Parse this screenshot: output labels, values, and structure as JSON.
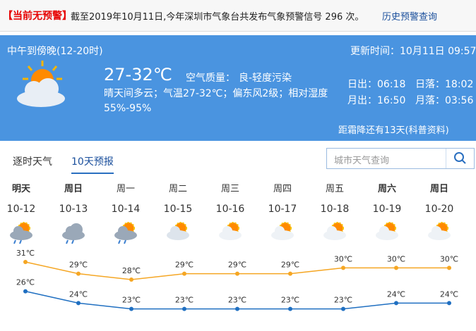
{
  "alert": {
    "status": "【当前无预警】",
    "message": "截至2019年10月11日,今年深圳市气象台共发布气象预警信号 296 次。",
    "link": "历史预警查询"
  },
  "current": {
    "period": "中午到傍晚(12-20时)",
    "updated": "更新时间：10月11日 09:57",
    "temp": "27-32℃",
    "aqi_label": "空气质量：",
    "aqi_value": "良-轻度污染",
    "description": "晴天间多云；气温27-32℃；偏东风2级；相对湿度55%-95%",
    "sunrise": "日出：06:18",
    "sunset": "日落：18:02",
    "moonrise": "月出：16:50",
    "moonset": "月落：03:56",
    "solar_term": "距霜降还有13天(科普资料)"
  },
  "tabs": [
    "逐时天气",
    "10天预报"
  ],
  "active_tab": 1,
  "search_placeholder": "城市天气查询",
  "forecast": {
    "weekdays": [
      "明天",
      "周日",
      "周一",
      "周二",
      "周三",
      "周四",
      "周五",
      "周六",
      "周日"
    ],
    "bold": [
      true,
      true,
      false,
      false,
      false,
      false,
      false,
      true,
      true
    ]
  },
  "chart_data": {
    "type": "line",
    "categories": [
      "10-12",
      "10-13",
      "10-14",
      "10-15",
      "10-16",
      "10-17",
      "10-18",
      "10-19",
      "10-20"
    ],
    "ylim": [
      21.4,
      33.4
    ],
    "series": [
      {
        "color": "#f5a623",
        "values": [
          31,
          29,
          28,
          29,
          29,
          29,
          30,
          30,
          30
        ],
        "value_labels": [
          "31℃",
          "29℃",
          "28℃",
          "29℃",
          "29℃",
          "29℃",
          "30℃",
          "30℃",
          "30℃"
        ]
      },
      {
        "color": "#1f6fc1",
        "values": [
          26,
          24,
          23,
          23,
          23,
          23,
          23,
          24,
          24
        ],
        "value_labels": [
          "26℃",
          "24℃",
          "23℃",
          "23℃",
          "23℃",
          "23℃",
          "23℃",
          "24℃",
          "24℃"
        ]
      }
    ]
  }
}
